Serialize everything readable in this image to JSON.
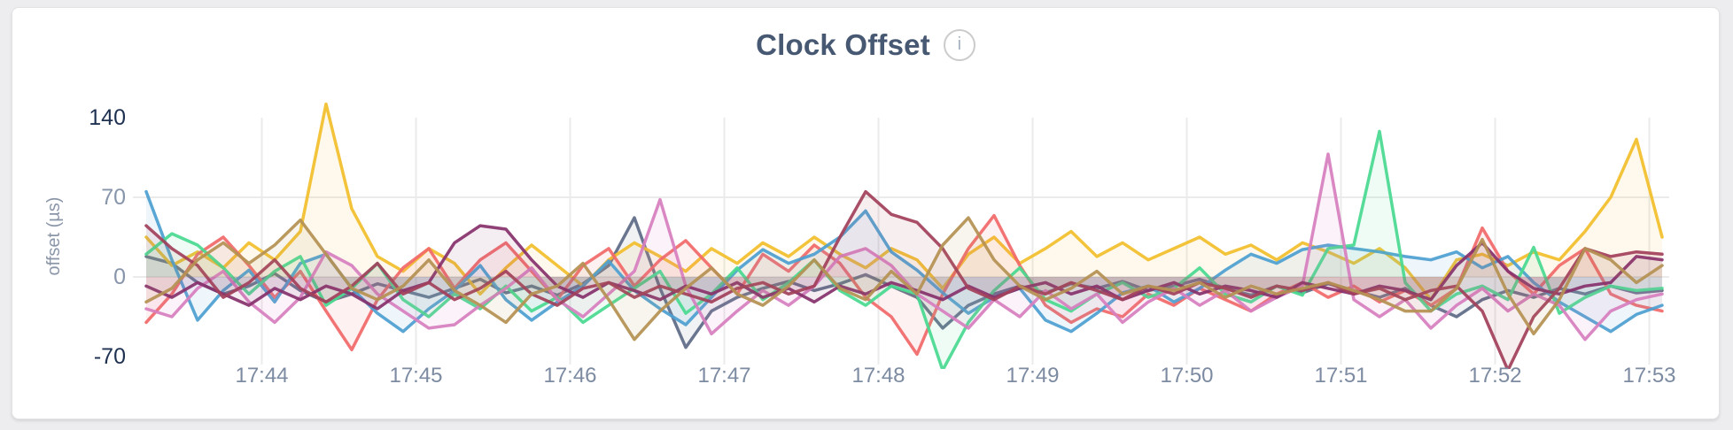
{
  "header": {
    "title": "Clock Offset",
    "info_glyph": "i"
  },
  "y_axis": {
    "label": "offset (µs)",
    "ticks": [
      {
        "label": "140",
        "value": 140,
        "strong": true
      },
      {
        "label": "70",
        "value": 70,
        "strong": false
      },
      {
        "label": "0",
        "value": 0,
        "strong": false
      },
      {
        "label": "-70",
        "value": -70,
        "strong": true
      }
    ]
  },
  "colors": {
    "title": "#475872",
    "axis_strong": "#1e3150",
    "axis_muted": "#8795ab",
    "gridline": "#ebebeb",
    "card_background": "#ffffff",
    "page_background": "#ededef"
  },
  "chart_data": {
    "type": "line",
    "title": "Clock Offset",
    "ylabel": "offset (µs)",
    "xlabel": "",
    "grid": "on",
    "legend": "none",
    "ylim": [
      -82,
      155
    ],
    "y_tick_values": [
      140,
      70,
      0,
      -70
    ],
    "y_gridline_values": [
      70,
      0
    ],
    "x_tick_labels": [
      "17:44",
      "17:45",
      "17:46",
      "17:47",
      "17:48",
      "17:49",
      "17:50",
      "17:51",
      "17:52",
      "17:53"
    ],
    "x_start": "17:43:15",
    "x_step_seconds": 10,
    "points_per_series": 60,
    "area_fill_opacity": 0.09,
    "series": [
      {
        "name": "slate",
        "color": "#5F6C87",
        "values": [
          18,
          12,
          -5,
          -15,
          -8,
          3,
          -12,
          -22,
          -15,
          -6,
          -12,
          -18,
          -10,
          -2,
          -14,
          -8,
          -16,
          -6,
          10,
          52,
          -10,
          -62,
          -30,
          -18,
          -10,
          -4,
          -12,
          -6,
          2,
          -8,
          -18,
          -45,
          -25,
          -15,
          -8,
          -14,
          -6,
          -10,
          -4,
          -12,
          -8,
          -2,
          -10,
          -16,
          -8,
          -14,
          -6,
          -12,
          -18,
          -10,
          -25,
          -35,
          -20,
          -12,
          -18,
          -10,
          -15,
          -8,
          -14,
          -12
        ]
      },
      {
        "name": "yellow",
        "color": "#F2BE2C",
        "values": [
          35,
          10,
          22,
          8,
          30,
          15,
          40,
          152,
          60,
          18,
          5,
          25,
          12,
          -15,
          8,
          28,
          10,
          -8,
          15,
          30,
          18,
          5,
          25,
          12,
          30,
          18,
          35,
          20,
          8,
          25,
          15,
          -10,
          20,
          35,
          12,
          25,
          40,
          18,
          30,
          15,
          25,
          35,
          20,
          28,
          15,
          30,
          22,
          12,
          25,
          8,
          -20,
          15,
          20,
          10,
          22,
          15,
          40,
          70,
          121,
          35
        ]
      },
      {
        "name": "red",
        "color": "#F16969",
        "values": [
          -40,
          -15,
          20,
          35,
          10,
          -18,
          5,
          -30,
          -64,
          -20,
          8,
          25,
          -10,
          15,
          30,
          5,
          -20,
          10,
          25,
          -8,
          15,
          32,
          8,
          -15,
          20,
          5,
          28,
          12,
          -18,
          -35,
          -68,
          -15,
          25,
          54,
          10,
          -25,
          -40,
          -28,
          -35,
          -15,
          -25,
          -10,
          -20,
          -30,
          -15,
          -5,
          -18,
          -8,
          -22,
          -12,
          -25,
          -10,
          43,
          5,
          -15,
          10,
          25,
          -15,
          -25,
          -30
        ]
      },
      {
        "name": "blue",
        "color": "#4E9FD1",
        "values": [
          75,
          15,
          -38,
          -12,
          6,
          -22,
          12,
          20,
          -10,
          -32,
          -48,
          -28,
          -12,
          10,
          -20,
          -38,
          -22,
          -8,
          14,
          -12,
          -28,
          -42,
          -18,
          6,
          24,
          12,
          20,
          35,
          58,
          22,
          6,
          -14,
          -32,
          -18,
          -10,
          -38,
          -48,
          -32,
          -14,
          -8,
          -22,
          -10,
          6,
          20,
          12,
          24,
          28,
          25,
          22,
          18,
          15,
          22,
          8,
          18,
          -5,
          -22,
          -35,
          -48,
          -33,
          -25
        ]
      },
      {
        "name": "green",
        "color": "#49D990",
        "values": [
          20,
          38,
          28,
          8,
          -15,
          5,
          18,
          -25,
          -10,
          12,
          -20,
          -35,
          -15,
          -28,
          -8,
          -30,
          -18,
          -40,
          -25,
          -10,
          5,
          -32,
          -15,
          8,
          -20,
          -5,
          15,
          -12,
          -25,
          -8,
          -15,
          -82,
          -40,
          -12,
          8,
          -20,
          -30,
          -15,
          -5,
          -18,
          -10,
          8,
          -15,
          -22,
          -8,
          -16,
          25,
          28,
          128,
          -5,
          -30,
          -15,
          -8,
          -20,
          26,
          -32,
          -18,
          -8,
          -12,
          -10
        ]
      },
      {
        "name": "orchid",
        "color": "#D77FBF",
        "values": [
          -28,
          -35,
          -10,
          5,
          -22,
          -40,
          -18,
          22,
          10,
          -15,
          -30,
          -45,
          -42,
          -25,
          -10,
          8,
          -20,
          -35,
          -15,
          5,
          68,
          -8,
          -50,
          -30,
          -12,
          -25,
          -8,
          18,
          25,
          10,
          -15,
          -30,
          -45,
          -20,
          -35,
          -12,
          -28,
          -15,
          -40,
          -22,
          -10,
          -25,
          -12,
          -30,
          -18,
          -8,
          108,
          -20,
          -35,
          -20,
          -45,
          -25,
          -10,
          -30,
          -15,
          -25,
          -55,
          -30,
          -20,
          -15
        ]
      },
      {
        "name": "plum",
        "color": "#87326D",
        "values": [
          -8,
          -18,
          -5,
          -15,
          -25,
          -10,
          -20,
          -8,
          -15,
          -28,
          -12,
          -5,
          30,
          45,
          42,
          15,
          -8,
          -18,
          -5,
          -12,
          -20,
          -8,
          -15,
          -5,
          -18,
          -10,
          -22,
          -8,
          -15,
          -5,
          -12,
          -20,
          -8,
          -18,
          -10,
          -5,
          -15,
          -8,
          -20,
          -12,
          -5,
          -15,
          -8,
          -12,
          -18,
          -5,
          -10,
          -15,
          -8,
          -12,
          -20,
          10,
          30,
          5,
          -10,
          -15,
          -8,
          -5,
          18,
          15
        ]
      },
      {
        "name": "maroon",
        "color": "#A3415B",
        "values": [
          45,
          25,
          10,
          -18,
          -5,
          15,
          -10,
          -22,
          -8,
          12,
          -15,
          -5,
          -20,
          -10,
          5,
          -15,
          -25,
          -10,
          -5,
          -18,
          -8,
          -15,
          -22,
          -10,
          -5,
          -15,
          -8,
          35,
          75,
          55,
          48,
          25,
          -10,
          -20,
          -8,
          -15,
          -5,
          -12,
          -20,
          -8,
          -15,
          -5,
          -10,
          -18,
          -8,
          -12,
          -5,
          -15,
          -10,
          -20,
          -12,
          -8,
          -30,
          -82,
          -35,
          -10,
          25,
          18,
          22,
          20
        ]
      },
      {
        "name": "khaki",
        "color": "#B59153",
        "values": [
          -22,
          -10,
          15,
          30,
          12,
          28,
          50,
          20,
          -10,
          -20,
          -8,
          15,
          -12,
          -25,
          -40,
          -15,
          -8,
          12,
          -20,
          -55,
          -30,
          -10,
          8,
          -15,
          -25,
          -8,
          15,
          -10,
          -20,
          5,
          -15,
          28,
          52,
          15,
          -8,
          -20,
          -10,
          5,
          -15,
          -8,
          -12,
          -5,
          -18,
          -8,
          -15,
          -10,
          -5,
          -12,
          -20,
          -30,
          -30,
          -10,
          33,
          -15,
          -50,
          -20,
          25,
          15,
          -5,
          10
        ]
      }
    ]
  }
}
